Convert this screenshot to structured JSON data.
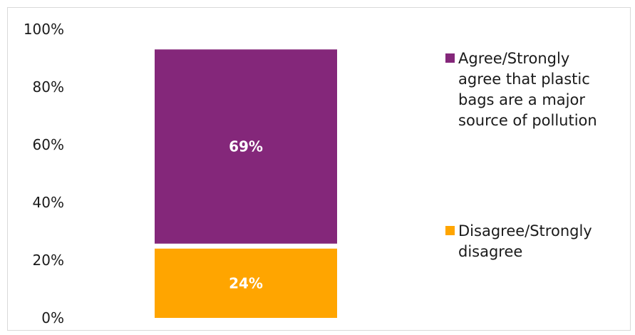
{
  "chart_data": {
    "type": "bar",
    "stacked": true,
    "categories": [
      ""
    ],
    "series": [
      {
        "name": "Agree/Strongly agree that plastic bags are a major source of pollution",
        "name_lines": [
          "Agree/Strongly",
          "agree that plastic",
          "bags are a major",
          "source of pollution"
        ],
        "values": [
          69
        ],
        "data_label": "69%",
        "color": "#84277A"
      },
      {
        "name": "Disagree/Strongly disagree",
        "name_lines": [
          "Disagree/Strongly",
          "disagree"
        ],
        "values": [
          24
        ],
        "data_label": "24%",
        "color": "#FFA500"
      }
    ],
    "stack_order_bottom_to_top": [
      "Disagree/Strongly disagree",
      "Agree/Strongly agree that plastic bags are a major source of pollution"
    ],
    "y_ticks": [
      "0%",
      "20%",
      "40%",
      "60%",
      "80%",
      "100%"
    ],
    "ylim": [
      0,
      100
    ],
    "title": "",
    "xlabel": "",
    "ylabel": "",
    "grid": false,
    "legend_position": "right"
  }
}
